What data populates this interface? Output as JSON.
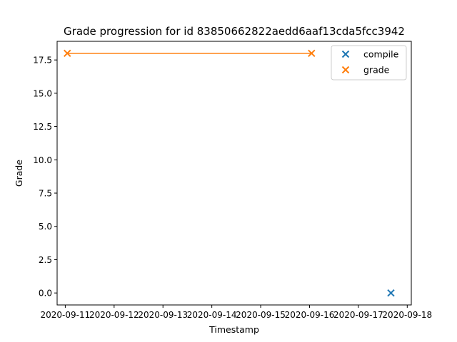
{
  "chart_data": {
    "type": "scatter",
    "title": "Grade progression for id 83850662822aedd6aaf13cda5fcc3942",
    "xlabel": "Timestamp",
    "ylabel": "Grade",
    "x_type": "date",
    "xlim": [
      "2020-09-10T20:00",
      "2020-09-18T02:00"
    ],
    "ylim": [
      -0.9,
      18.9
    ],
    "x_ticks": [
      "2020-09-11",
      "2020-09-12",
      "2020-09-13",
      "2020-09-14",
      "2020-09-15",
      "2020-09-16",
      "2020-09-17",
      "2020-09-18"
    ],
    "y_ticks": [
      0.0,
      2.5,
      5.0,
      7.5,
      10.0,
      12.5,
      15.0,
      17.5
    ],
    "y_tick_labels": [
      "0.0",
      "2.5",
      "5.0",
      "7.5",
      "10.0",
      "12.5",
      "15.0",
      "17.5"
    ],
    "grid": false,
    "legend_position": "top-right",
    "series": [
      {
        "name": "compile",
        "marker": "x",
        "color": "#1f77b4",
        "connected": false,
        "points": [
          {
            "x": "2020-09-17T16:00",
            "y": 0
          }
        ]
      },
      {
        "name": "grade",
        "marker": "x",
        "color": "#ff7f0e",
        "connected": true,
        "points": [
          {
            "x": "2020-09-11T01:00",
            "y": 18
          },
          {
            "x": "2020-09-16T01:00",
            "y": 18
          }
        ]
      }
    ]
  }
}
